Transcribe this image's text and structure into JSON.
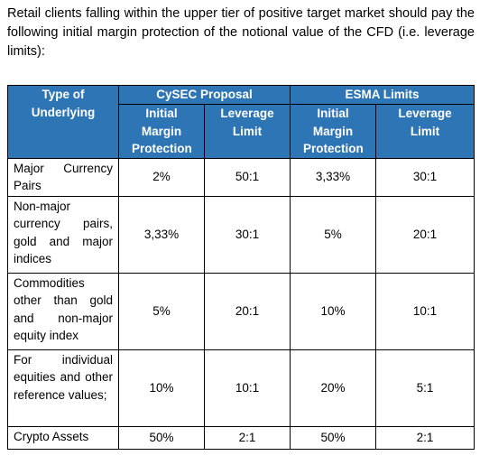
{
  "intro": "Retail clients falling within the upper tier of positive target market should pay the following initial margin protection of the notional value of the CFD (i.e. leverage limits):",
  "table": {
    "header": {
      "underlying": "Type of Underlying",
      "cysec_group": "CySEC Proposal",
      "esma_group": "ESMA Limits",
      "initial_margin": "Initial Margin Protection",
      "leverage_limit": "Leverage Limit"
    },
    "rows": [
      {
        "type": "Major Currency Pairs",
        "cysec_margin": "2%",
        "cysec_leverage": "50:1",
        "esma_margin": "3,33%",
        "esma_leverage": "30:1"
      },
      {
        "type": "Non-major currency pairs, gold and major indices",
        "cysec_margin": "3,33%",
        "cysec_leverage": "30:1",
        "esma_margin": "5%",
        "esma_leverage": "20:1"
      },
      {
        "type": "Commodities other than gold and non-major equity index",
        "cysec_margin": "5%",
        "cysec_leverage": "20:1",
        "esma_margin": "10%",
        "esma_leverage": "10:1"
      },
      {
        "type": "For individual equities and other reference values;",
        "cysec_margin": "10%",
        "cysec_leverage": "10:1",
        "esma_margin": "20%",
        "esma_leverage": "5:1"
      },
      {
        "type": "Crypto Assets",
        "cysec_margin": "50%",
        "cysec_leverage": "2:1",
        "esma_margin": "50%",
        "esma_leverage": "2:1"
      }
    ]
  },
  "colors": {
    "header_bg": "#2e75b6",
    "header_text": "#ffffff"
  }
}
